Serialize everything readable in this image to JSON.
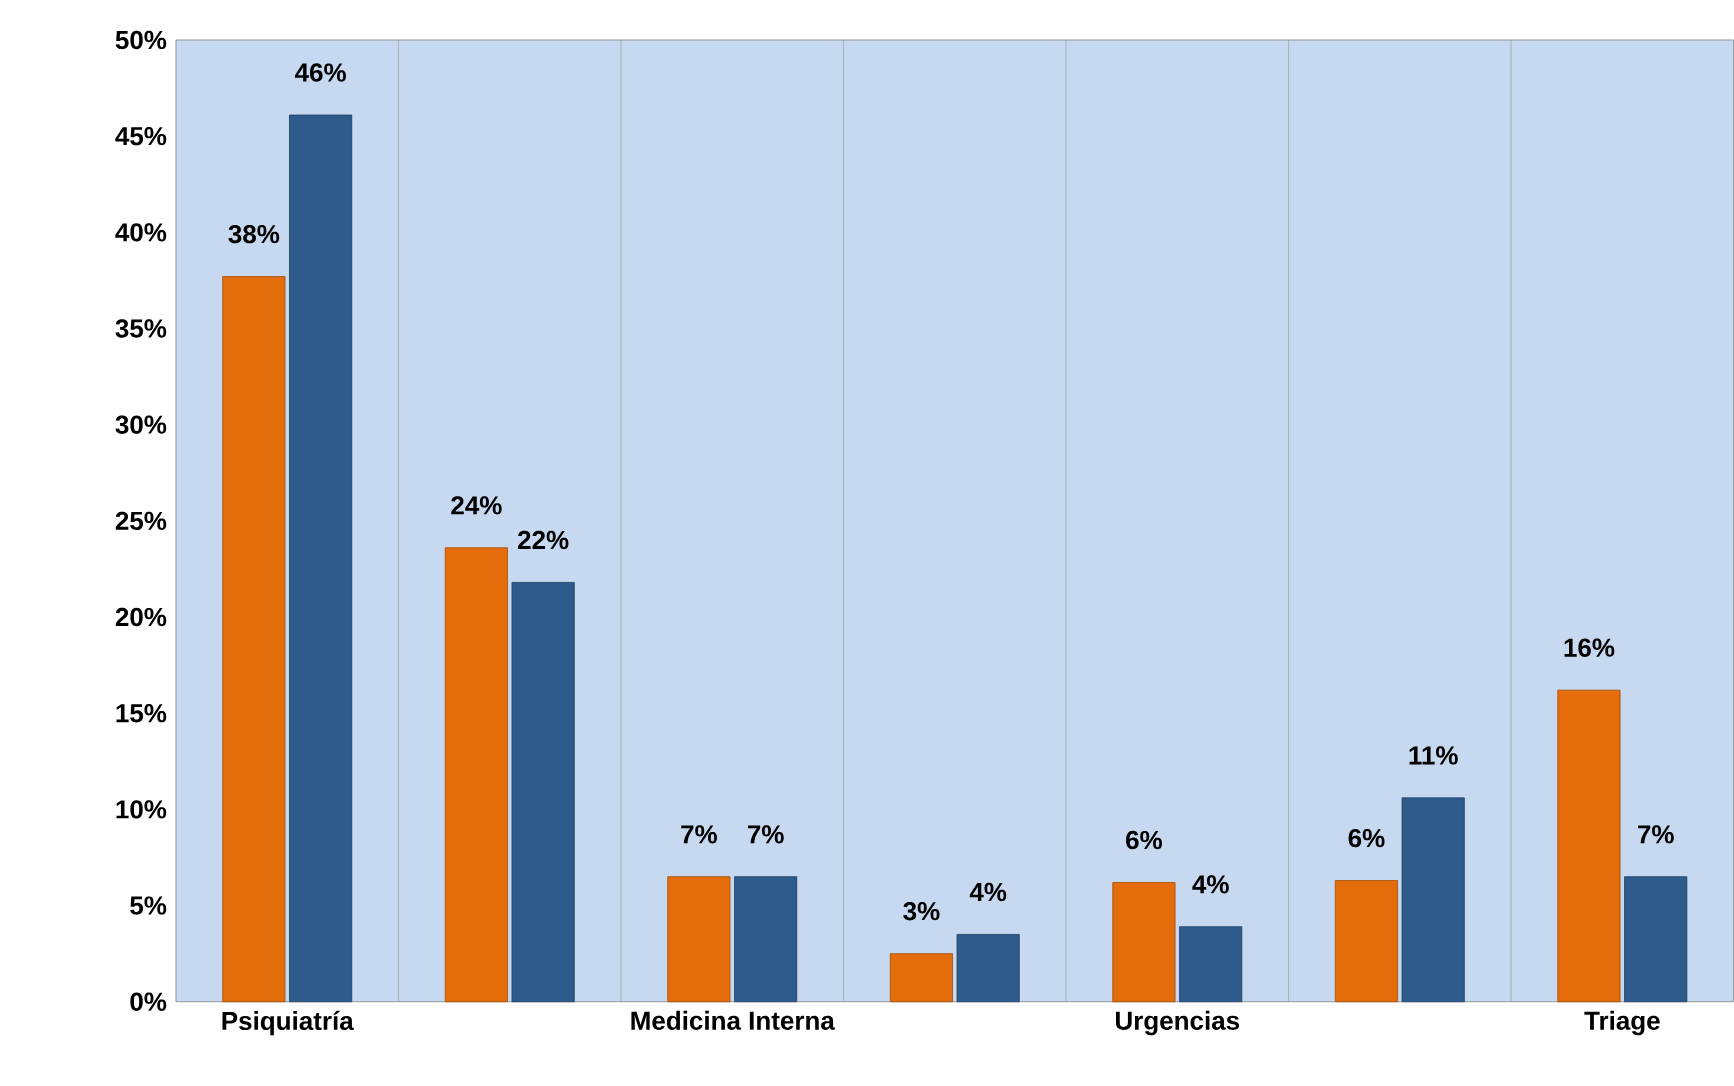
{
  "chart_data": {
    "type": "bar",
    "categories": [
      "Psiquiatría",
      null,
      "Medicina Interna",
      null,
      "Urgencias",
      null,
      "Triage"
    ],
    "series": [
      {
        "color": "#e46c0a",
        "values": [
          37.7,
          23.6,
          6.5,
          2.5,
          6.2,
          6.3,
          16.2
        ],
        "value_labels": [
          "38%",
          "24%",
          "7%",
          "3%",
          "6%",
          "6%",
          "16%"
        ]
      },
      {
        "color": "#2e5a8c",
        "values": [
          46.1,
          21.8,
          6.5,
          3.5,
          3.9,
          10.6,
          6.5
        ],
        "value_labels": [
          "46%",
          "22%",
          "7%",
          "4%",
          "4%",
          "11%",
          "7%"
        ]
      }
    ],
    "ylim": [
      0,
      50
    ],
    "yticks": [
      {
        "value": 0,
        "label": "0%"
      },
      {
        "value": 5,
        "label": "5%"
      },
      {
        "value": 10,
        "label": "10%"
      },
      {
        "value": 15,
        "label": "15%"
      },
      {
        "value": 20,
        "label": "20%"
      },
      {
        "value": 25,
        "label": "25%"
      },
      {
        "value": 30,
        "label": "30%"
      },
      {
        "value": 35,
        "label": "35%"
      },
      {
        "value": 40,
        "label": "40%"
      },
      {
        "value": 45,
        "label": "45%"
      },
      {
        "value": 50,
        "label": "50%"
      }
    ],
    "grid": "x"
  }
}
